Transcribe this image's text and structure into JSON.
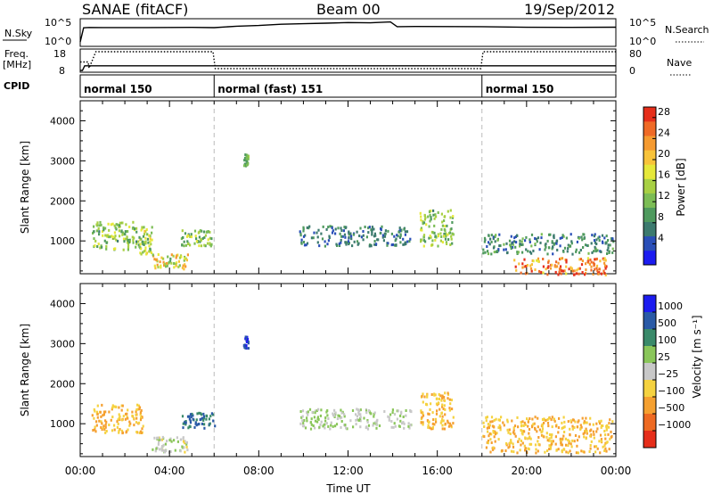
{
  "header": {
    "site": "SANAE (fitACF)",
    "beam": "Beam 00",
    "date": "19/Sep/2012"
  },
  "chart_data": [
    {
      "type": "line",
      "panel": "noise",
      "left_label": "N.Sky",
      "right_label": "N.Search",
      "left_ticks": [
        "10^5",
        "10^0"
      ],
      "right_ticks": [
        "10^5",
        "10^0"
      ],
      "series": [
        {
          "name": "N.Sky",
          "style": "solid",
          "x_hours": [
            0,
            0.15,
            0.4,
            1,
            3,
            5,
            6,
            7,
            8,
            9,
            10,
            11,
            12,
            13,
            13.9,
            14.2,
            15,
            18,
            20,
            22,
            24
          ],
          "level": [
            0.08,
            0.75,
            0.75,
            0.76,
            0.78,
            0.77,
            0.76,
            0.8,
            0.87,
            0.92,
            0.95,
            0.97,
            0.98,
            0.99,
            1.0,
            0.8,
            0.79,
            0.78,
            0.78,
            0.78,
            0.77
          ]
        }
      ]
    },
    {
      "type": "line",
      "panel": "frequency",
      "left_label": "Freq.",
      "left_unit": "[MHz]",
      "right_label": "Nave",
      "left_ticks": [
        "18",
        "8"
      ],
      "right_ticks": [
        "80",
        "0"
      ],
      "series": [
        {
          "name": "Freq.",
          "style": "solid",
          "x_hours": [
            0,
            0.1,
            0.2,
            6,
            6.1,
            24
          ],
          "value_mhz": [
            8,
            8,
            10.5,
            10.5,
            10.5,
            10.5
          ]
        },
        {
          "name": "Nave",
          "style": "dotted",
          "x_hours": [
            0,
            0.35,
            0.4,
            0.7,
            5.95,
            6.05,
            17.95,
            18.05,
            24
          ],
          "value": [
            36,
            36,
            10,
            80,
            80,
            8,
            8,
            80,
            80
          ]
        }
      ]
    },
    {
      "type": "table",
      "panel": "cpid",
      "label": "CPID",
      "segments": [
        {
          "start_hour": 0,
          "label": "normal 150"
        },
        {
          "start_hour": 6,
          "label": "normal (fast) 151"
        },
        {
          "start_hour": 18,
          "label": "normal 150"
        }
      ]
    },
    {
      "type": "heatmap",
      "panel": "power",
      "ylabel": "Slant Range [km]",
      "xlim": [
        0,
        24
      ],
      "ylim": [
        180,
        4500
      ],
      "y_ticks": [
        1000,
        2000,
        3000,
        4000
      ],
      "colorbar": {
        "label": "Power [dB]",
        "ticks": [
          4,
          8,
          12,
          16,
          20,
          24,
          28
        ],
        "range": [
          0,
          30
        ],
        "colors": [
          "#1c1cf0",
          "#2a4fb8",
          "#3c7a6e",
          "#4f9a5e",
          "#7cbd55",
          "#a8d043",
          "#e6e83a",
          "#f8c33a",
          "#f59a30",
          "#ef6a26",
          "#e62e1a"
        ]
      },
      "regions": [
        {
          "x": [
            0.5,
            2.8
          ],
          "y": [
            800,
            1500
          ],
          "v": [
            8,
            18
          ]
        },
        {
          "x": [
            2.6,
            3.2
          ],
          "y": [
            700,
            1400
          ],
          "v": [
            10,
            20
          ]
        },
        {
          "x": [
            3.2,
            4.8
          ],
          "y": [
            300,
            700
          ],
          "v": [
            10,
            24
          ]
        },
        {
          "x": [
            4.5,
            6.0
          ],
          "y": [
            900,
            1300
          ],
          "v": [
            8,
            18
          ]
        },
        {
          "x": [
            7.3,
            7.5
          ],
          "y": [
            2900,
            3200
          ],
          "v": [
            8,
            14
          ]
        },
        {
          "x": [
            9.8,
            14.8
          ],
          "y": [
            900,
            1400
          ],
          "v": [
            4,
            10
          ]
        },
        {
          "x": [
            15.2,
            16.7
          ],
          "y": [
            900,
            1800
          ],
          "v": [
            8,
            18
          ]
        },
        {
          "x": [
            18.0,
            23.9
          ],
          "y": [
            700,
            1200
          ],
          "v": [
            4,
            12
          ]
        },
        {
          "x": [
            19.4,
            23.6
          ],
          "y": [
            180,
            600
          ],
          "v": [
            18,
            30
          ]
        }
      ],
      "vertical_markers_hours": [
        6,
        18
      ]
    },
    {
      "type": "heatmap",
      "panel": "velocity",
      "xlabel": "Time UT",
      "ylabel": "Slant Range [km]",
      "xlim": [
        0,
        24
      ],
      "ylim": [
        180,
        4500
      ],
      "x_ticks": [
        "00:00",
        "04:00",
        "08:00",
        "12:00",
        "16:00",
        "20:00",
        "00:00"
      ],
      "y_ticks": [
        1000,
        2000,
        3000,
        4000
      ],
      "colorbar": {
        "label": "Velocity [m s⁻¹]",
        "ticks": [
          "1000",
          "500",
          "100",
          "25",
          "−25",
          "−100",
          "−500",
          "−1000"
        ],
        "colors": [
          "#1c1cf0",
          "#2a5aa6",
          "#3a8a6a",
          "#8ac65a",
          "#c8c8c8",
          "#f5d240",
          "#f5a030",
          "#ee6a22",
          "#e62e1a"
        ]
      },
      "regions": [
        {
          "x": [
            0.5,
            2.8
          ],
          "y": [
            800,
            1500
          ],
          "v": [
            "-100",
            "-500"
          ]
        },
        {
          "x": [
            3.2,
            4.8
          ],
          "y": [
            300,
            700
          ],
          "v": [
            "-100",
            "25"
          ]
        },
        {
          "x": [
            4.5,
            6.0
          ],
          "y": [
            900,
            1300
          ],
          "v": [
            "100",
            "500"
          ]
        },
        {
          "x": [
            7.3,
            7.5
          ],
          "y": [
            2900,
            3200
          ],
          "v": [
            "500",
            "1000"
          ]
        },
        {
          "x": [
            9.8,
            14.8
          ],
          "y": [
            900,
            1400
          ],
          "v": [
            "25",
            "-25"
          ]
        },
        {
          "x": [
            15.2,
            16.7
          ],
          "y": [
            900,
            1800
          ],
          "v": [
            "-100",
            "-500"
          ]
        },
        {
          "x": [
            18.0,
            23.9
          ],
          "y": [
            300,
            1200
          ],
          "v": [
            "-100",
            "-500"
          ]
        }
      ],
      "vertical_markers_hours": [
        6,
        18
      ]
    }
  ]
}
